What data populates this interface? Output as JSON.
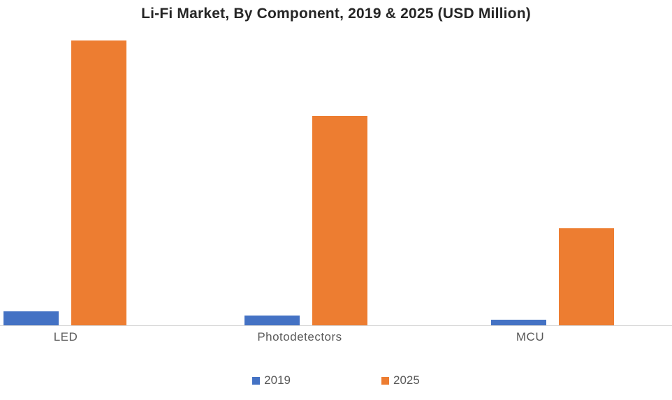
{
  "title": "Li-Fi Market, By Component, 2019 & 2025 (USD Million)",
  "chart_data": {
    "type": "bar",
    "title": "Li-Fi Market, By Component, 2019 & 2025 (USD Million)",
    "categories": [
      "LED",
      "Photodetectors",
      "MCU"
    ],
    "series": [
      {
        "name": "2019",
        "color": "#4472C4",
        "values": [
          5,
          3.5,
          2
        ]
      },
      {
        "name": "2025",
        "color": "#ED7D31",
        "values": [
          100,
          73.5,
          34
        ]
      }
    ],
    "xlabel": "",
    "ylabel": "USD Million",
    "ylim": [
      0,
      104
    ],
    "grid": false,
    "y_axis_visible": false,
    "legend_position": "bottom",
    "axis_line_color": "#d6d6d6"
  },
  "legend": {
    "items": [
      {
        "label": "2019",
        "color": "#4472C4"
      },
      {
        "label": "2025",
        "color": "#ED7D31"
      }
    ]
  }
}
